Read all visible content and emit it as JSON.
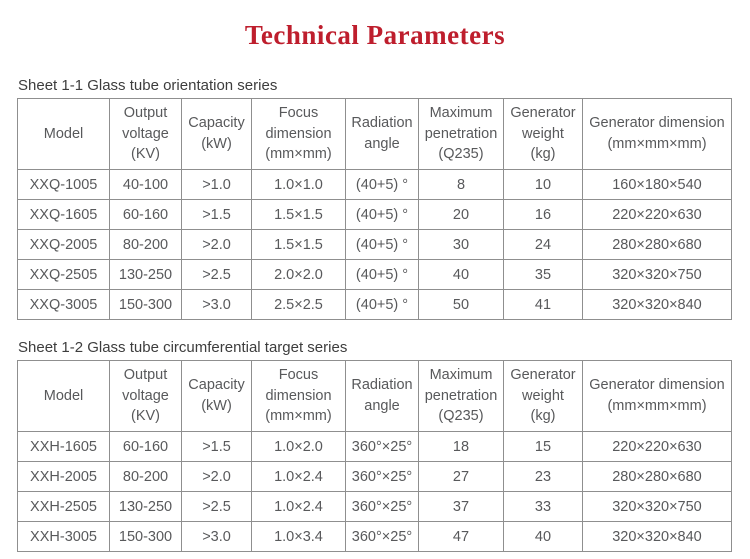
{
  "page": {
    "title": "Technical Parameters"
  },
  "colors": {
    "title_red": "#be1e2d",
    "table_text_gray": "#58595b",
    "border_gray": "#8f8f8f",
    "caption_gray": "#3d3d3d"
  },
  "tables": [
    {
      "caption": "Sheet 1-1 Glass tube orientation series",
      "headers": [
        "Model",
        "Output voltage (KV)",
        "Capacity (kW)",
        "Focus dimension (mm×mm)",
        "Radiation angle",
        "Maximum penetration (Q235)",
        "Generator weight (kg)",
        "Generator dimension (mm×mm×mm)"
      ],
      "rows": [
        [
          "XXQ-1005",
          "40-100",
          ">1.0",
          "1.0×1.0",
          "(40+5) °",
          "8",
          "10",
          "160×180×540"
        ],
        [
          "XXQ-1605",
          "60-160",
          ">1.5",
          "1.5×1.5",
          "(40+5) °",
          "20",
          "16",
          "220×220×630"
        ],
        [
          "XXQ-2005",
          "80-200",
          ">2.0",
          "1.5×1.5",
          "(40+5) °",
          "30",
          "24",
          "280×280×680"
        ],
        [
          "XXQ-2505",
          "130-250",
          ">2.5",
          "2.0×2.0",
          "(40+5) °",
          "40",
          "35",
          "320×320×750"
        ],
        [
          "XXQ-3005",
          "150-300",
          ">3.0",
          "2.5×2.5",
          "(40+5) °",
          "50",
          "41",
          "320×320×840"
        ]
      ]
    },
    {
      "caption": "Sheet 1-2 Glass tube circumferential target series",
      "headers": [
        "Model",
        "Output voltage (KV)",
        "Capacity (kW)",
        "Focus dimension (mm×mm)",
        "Radiation angle",
        "Maximum penetration (Q235)",
        "Generator weight (kg)",
        "Generator dimension (mm×mm×mm)"
      ],
      "rows": [
        [
          "XXH-1605",
          "60-160",
          ">1.5",
          "1.0×2.0",
          "360°×25°",
          "18",
          "15",
          "220×220×630"
        ],
        [
          "XXH-2005",
          "80-200",
          ">2.0",
          "1.0×2.4",
          "360°×25°",
          "27",
          "23",
          "280×280×680"
        ],
        [
          "XXH-2505",
          "130-250",
          ">2.5",
          "1.0×2.4",
          "360°×25°",
          "37",
          "33",
          "320×320×750"
        ],
        [
          "XXH-3005",
          "150-300",
          ">3.0",
          "1.0×3.4",
          "360°×25°",
          "47",
          "40",
          "320×320×840"
        ]
      ]
    }
  ]
}
